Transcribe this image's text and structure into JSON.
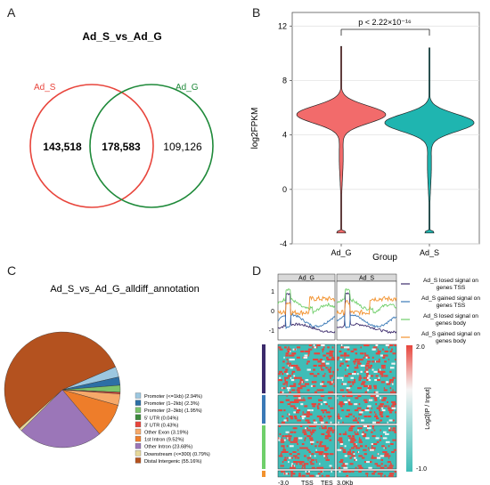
{
  "panels": {
    "a": "A",
    "b": "B",
    "c": "C",
    "d": "D"
  },
  "venn": {
    "title": "Ad_S_vs_Ad_G",
    "left_label": "Ad_S",
    "right_label": "Ad_G",
    "left_only": "143,518",
    "overlap": "178,583",
    "right_only": "109,126",
    "colors": {
      "left": "#e8453c",
      "right": "#1f8a3a"
    }
  },
  "chart_data": [
    {
      "type": "violin",
      "title": "",
      "xlabel": "Group",
      "ylabel": "log2FPKM",
      "categories": [
        "Ad_G",
        "Ad_S"
      ],
      "ylim": [
        -4,
        13
      ],
      "yticks": [
        "-4",
        "0",
        "4",
        "8",
        "12"
      ],
      "grid": true,
      "annotation": "p < 2.22×10⁻¹⁶",
      "series": [
        {
          "category": "Ad_G",
          "color": "#f26b6b",
          "min": -3.2,
          "max": 10.5,
          "peak": 5.5
        },
        {
          "category": "Ad_S",
          "color": "#1fb5b0",
          "min": -3.2,
          "max": 10.4,
          "peak": 4.9
        }
      ]
    },
    {
      "type": "pie",
      "title": "Ad_S_vs_Ad_G_alldiff_annotation",
      "categories": [
        "Promoter (<=1kb) (2.94%)",
        "Promoter (1–2kb) (2.3%)",
        "Promoter (2–3kb) (1.95%)",
        "5' UTR (0.04%)",
        "3' UTR (0.43%)",
        "Other Exon (3.19%)",
        "1st Intron (9.52%)",
        "Other Intron (23.68%)",
        "Downstream (<=300) (0.79%)",
        "Distal Intergenic (55.16%)"
      ],
      "values": [
        2.94,
        2.3,
        1.95,
        0.04,
        0.43,
        3.19,
        9.52,
        23.68,
        0.79,
        55.16
      ],
      "colors": [
        "#9cc7e0",
        "#2d6fa5",
        "#7cc36a",
        "#3d8a3d",
        "#e8453c",
        "#f6a96a",
        "#ee7d2a",
        "#9b76b8",
        "#e6d89a",
        "#b4521f"
      ],
      "legend": "right"
    },
    {
      "type": "line",
      "title": "",
      "facets": [
        "Ad_G",
        "Ad_S"
      ],
      "yticks": [
        "1",
        "0",
        "-1"
      ],
      "ylim": [
        -1.5,
        1.5
      ],
      "series": [
        {
          "name": "Ad_S losed signal on genes TSS",
          "color": "#3b2a6b"
        },
        {
          "name": "Ad_S gained signal on genes TSS",
          "color": "#3a79b6"
        },
        {
          "name": "Ad_S losed signal on genes body",
          "color": "#6fcf6a"
        },
        {
          "name": "Ad_S gained signal on genes body",
          "color": "#f2922e"
        }
      ]
    },
    {
      "type": "heatmap",
      "colorbar_label": "Log2[IP / Input]",
      "colorbar_ticks": [
        "2.0",
        "-1.0"
      ],
      "colorbar_range": [
        -1.0,
        2.0
      ],
      "x_ticks": [
        "-3.0",
        "TSS",
        "TES",
        "3.0Kb"
      ]
    }
  ]
}
